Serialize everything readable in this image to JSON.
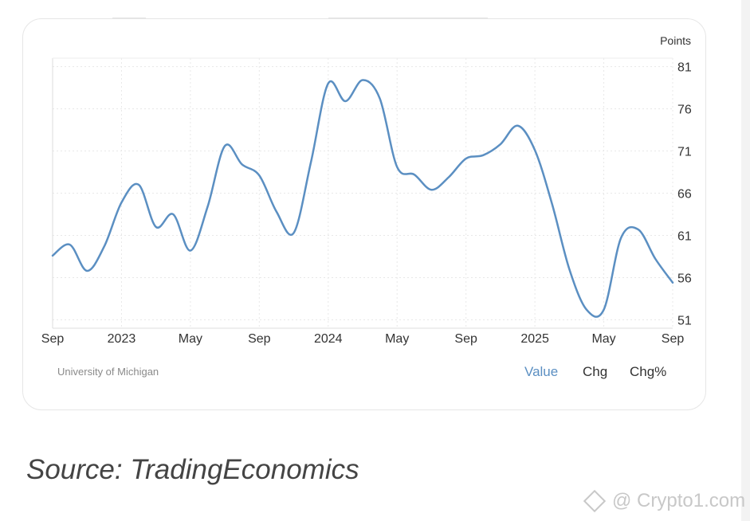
{
  "chart_data": {
    "type": "line",
    "title": "",
    "unit_label": "Points",
    "xlabel": "",
    "ylabel": "",
    "x_tick_labels": [
      "Sep",
      "2023",
      "May",
      "Sep",
      "2024",
      "May",
      "Sep",
      "2025",
      "May",
      "Sep"
    ],
    "y_tick_labels": [
      "81",
      "76",
      "71",
      "66",
      "61",
      "56",
      "51"
    ],
    "ylim": [
      50,
      82
    ],
    "grid": true,
    "x": [
      "2022-09",
      "2022-10",
      "2022-11",
      "2022-12",
      "2023-01",
      "2023-02",
      "2023-03",
      "2023-04",
      "2023-05",
      "2023-06",
      "2023-07",
      "2023-08",
      "2023-09",
      "2023-10",
      "2023-11",
      "2023-12",
      "2024-01",
      "2024-02",
      "2024-03",
      "2024-04",
      "2024-05",
      "2024-06",
      "2024-07",
      "2024-08",
      "2024-09",
      "2024-10",
      "2024-11",
      "2024-12",
      "2025-01",
      "2025-02",
      "2025-03",
      "2025-04",
      "2025-05",
      "2025-06",
      "2025-07",
      "2025-08",
      "2025-09"
    ],
    "series": [
      {
        "values": [
          58.6,
          59.9,
          56.8,
          59.7,
          64.9,
          67.0,
          62.0,
          63.5,
          59.2,
          64.4,
          71.6,
          69.4,
          68.1,
          63.8,
          61.3,
          69.7,
          79.0,
          76.9,
          79.4,
          77.2,
          69.1,
          68.2,
          66.4,
          67.9,
          70.1,
          70.5,
          71.8,
          74.0,
          71.1,
          64.7,
          57.0,
          52.2,
          52.2,
          60.7,
          61.7,
          58.2,
          55.4
        ]
      }
    ],
    "line_color": "#5b8fc2",
    "legend": [
      "Value",
      "Chg",
      "Chg%"
    ],
    "source_credit": "University of Michigan"
  },
  "caption": "Source: TradingEconomics",
  "watermark": "@ Crypto1.com"
}
